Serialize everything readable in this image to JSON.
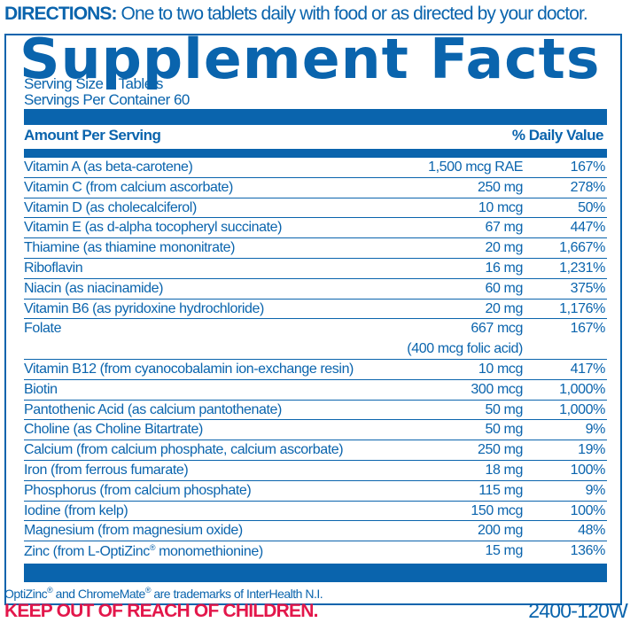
{
  "directions": {
    "label": "DIRECTIONS:",
    "text": "One to two tablets daily with food or as directed by your doctor."
  },
  "title": "Supplement Facts",
  "serving_size": "Serving Size 2 Tablets",
  "servings_per_container": "Servings Per Container 60",
  "header": {
    "amount": "Amount Per Serving",
    "dv": "% Daily Value"
  },
  "rows": [
    {
      "name": "Vitamin A (as beta-carotene)",
      "amount": "1,500 mcg RAE",
      "dv": "167%"
    },
    {
      "name": "Vitamin C (from calcium ascorbate)",
      "amount": "250 mg",
      "dv": "278%"
    },
    {
      "name": "Vitamin D (as cholecalciferol)",
      "amount": "10 mcg",
      "dv": "50%"
    },
    {
      "name": "Vitamin E (as d-alpha tocopheryl succinate)",
      "amount": "67 mg",
      "dv": "447%"
    },
    {
      "name": "Thiamine (as thiamine mononitrate)",
      "amount": "20 mg",
      "dv": "1,667%"
    },
    {
      "name": "Riboflavin",
      "amount": "16 mg",
      "dv": "1,231%"
    },
    {
      "name": "Niacin (as niacinamide)",
      "amount": "60 mg",
      "dv": "375%"
    },
    {
      "name": "Vitamin B6 (as pyridoxine hydrochloride)",
      "amount": "20 mg",
      "dv": "1,176%"
    },
    {
      "name": "Folate",
      "amount": "667 mcg",
      "amount_note": "(400 mcg folic acid)",
      "dv": "167%"
    },
    {
      "name": "Vitamin B12 (from cyanocobalamin ion-exchange resin)",
      "amount": "10 mcg",
      "dv": "417%"
    },
    {
      "name": "Biotin",
      "amount": "300 mcg",
      "dv": "1,000%"
    },
    {
      "name": "Pantothenic Acid (as calcium pantothenate)",
      "amount": "50 mg",
      "dv": "1,000%"
    },
    {
      "name": "Choline (as Choline Bitartrate)",
      "amount": "50 mg",
      "dv": "9%"
    },
    {
      "name": "Calcium (from calcium phosphate, calcium ascorbate)",
      "amount": "250 mg",
      "dv": "19%"
    },
    {
      "name": "Iron (from ferrous fumarate)",
      "amount": "18 mg",
      "dv": "100%"
    },
    {
      "name": "Phosphorus (from calcium phosphate)",
      "amount": "115 mg",
      "dv": "9%"
    },
    {
      "name": "Iodine (from kelp)",
      "amount": "150 mcg",
      "dv": "100%"
    },
    {
      "name": "Magnesium (from magnesium oxide)",
      "amount": "200 mg",
      "dv": "48%"
    },
    {
      "name_a": "Zinc (from L-OptiZinc",
      "name_reg": "®",
      "name_b": " monomethionine)",
      "amount": "15 mg",
      "dv": "136%"
    }
  ],
  "trademark": {
    "a": "OptiZinc",
    "reg": "®",
    "b": " and ChromeMate",
    "c": " are trademarks of InterHealth N.I."
  },
  "warning": "KEEP OUT OF REACH OF CHILDREN.",
  "product_code": "2400-120W",
  "colors": {
    "brand_blue": "#0a64ad",
    "warning_red": "#e3174b"
  }
}
